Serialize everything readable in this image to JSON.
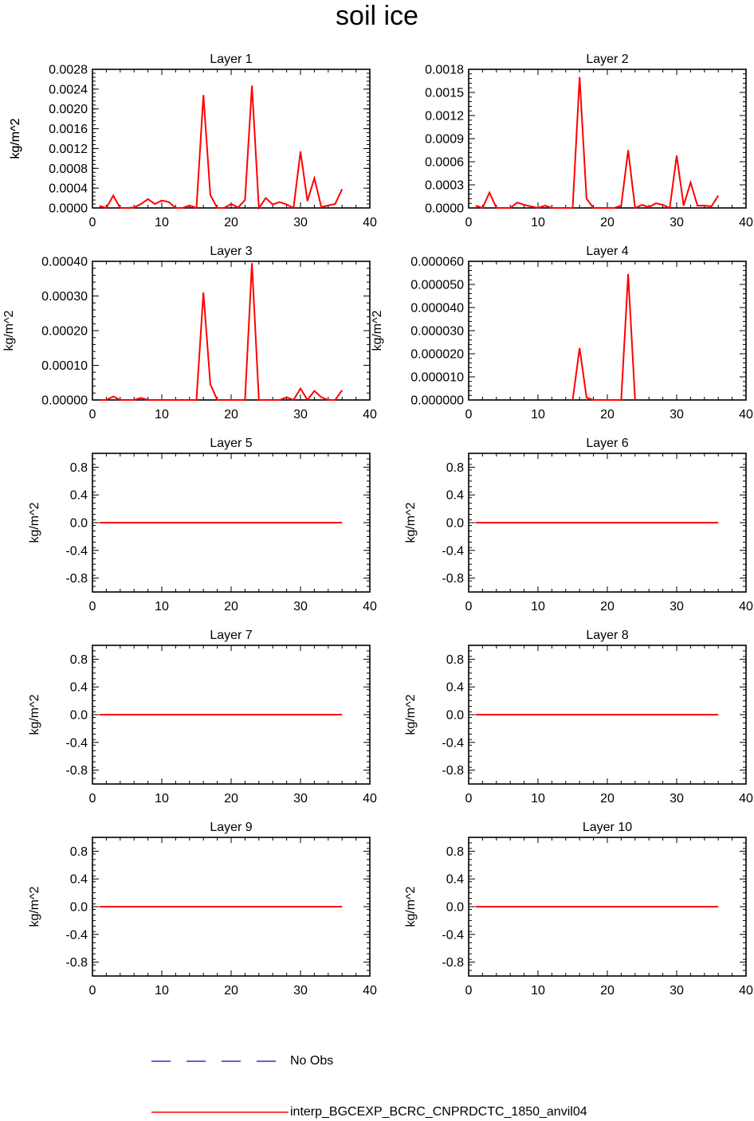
{
  "title": "soil ice",
  "colors": {
    "model_line": "#ff0000",
    "obs_line": "#0000cc",
    "axis": "#000000"
  },
  "legend": {
    "obs_label": "No Obs",
    "model_label": "interp_BGCEXP_BCRC_CNPRDCTC_1850_anvil04"
  },
  "chart_data": [
    {
      "type": "line",
      "title": "Layer 1",
      "ylabel": "kg/m^2",
      "xlim": [
        0,
        40
      ],
      "xticks": [
        "0",
        "10",
        "20",
        "30",
        "40"
      ],
      "ylim": [
        0,
        0.0028
      ],
      "yticks": [
        "0.0000",
        "0.0004",
        "0.0008",
        "0.0012",
        "0.0016",
        "0.0020",
        "0.0024",
        "0.0028"
      ],
      "series": [
        {
          "name": "interp_BGCEXP_BCRC_CNPRDCTC_1850_anvil04",
          "x": [
            1,
            2,
            3,
            4,
            5,
            6,
            7,
            8,
            9,
            10,
            11,
            12,
            13,
            14,
            15,
            16,
            17,
            18,
            19,
            20,
            21,
            22,
            23,
            24,
            25,
            26,
            27,
            28,
            29,
            30,
            31,
            32,
            33,
            34,
            35,
            36
          ],
          "values": [
            4e-05,
            0.0,
            0.00025,
            0.0,
            0.0,
            1e-05,
            8e-05,
            0.00018,
            8e-05,
            0.00015,
            0.00012,
            0.0,
            0.0,
            5e-05,
            0.0,
            0.00228,
            0.00026,
            0.0,
            0.0,
            8e-05,
            1e-05,
            0.00016,
            0.00247,
            0.0,
            0.0002,
            7e-05,
            0.00012,
            7e-05,
            0.0,
            0.00114,
            0.00014,
            0.0006,
            2e-05,
            5e-05,
            8e-05,
            0.00038
          ]
        }
      ]
    },
    {
      "type": "line",
      "title": "Layer 2",
      "ylabel": "kg/m^2",
      "xlim": [
        0,
        40
      ],
      "xticks": [
        "0",
        "10",
        "20",
        "30",
        "40"
      ],
      "ylim": [
        0,
        0.0018
      ],
      "yticks": [
        "0.0000",
        "0.0003",
        "0.0006",
        "0.0009",
        "0.0012",
        "0.0015",
        "0.0018"
      ],
      "series": [
        {
          "name": "interp_BGCEXP_BCRC_CNPRDCTC_1850_anvil04",
          "x": [
            1,
            2,
            3,
            4,
            5,
            6,
            7,
            8,
            9,
            10,
            11,
            12,
            13,
            14,
            15,
            16,
            17,
            18,
            19,
            20,
            21,
            22,
            23,
            24,
            25,
            26,
            27,
            28,
            29,
            30,
            31,
            32,
            33,
            34,
            35,
            36
          ],
          "values": [
            3e-05,
            0.0,
            0.0002,
            0.0,
            0.0,
            0.0,
            7e-05,
            4e-05,
            2e-05,
            0.0,
            3e-05,
            0.0,
            0.0,
            0.0,
            0.0,
            0.0017,
            0.00012,
            0.0,
            0.0,
            0.0,
            0.0,
            3e-05,
            0.00075,
            0.0,
            4e-05,
            1e-05,
            6e-05,
            4e-05,
            0.0,
            0.00068,
            3e-05,
            0.00033,
            3e-05,
            3e-05,
            2e-05,
            0.00016
          ]
        }
      ]
    },
    {
      "type": "line",
      "title": "Layer 3",
      "ylabel": "kg/m^2",
      "xlim": [
        0,
        40
      ],
      "xticks": [
        "0",
        "10",
        "20",
        "30",
        "40"
      ],
      "ylim": [
        0,
        0.0004
      ],
      "yticks": [
        "0.00000",
        "0.00010",
        "0.00020",
        "0.00030",
        "0.00040"
      ],
      "series": [
        {
          "name": "interp_BGCEXP_BCRC_CNPRDCTC_1850_anvil04",
          "x": [
            1,
            2,
            3,
            4,
            5,
            6,
            7,
            8,
            9,
            10,
            11,
            12,
            13,
            14,
            15,
            16,
            17,
            18,
            19,
            20,
            21,
            22,
            23,
            24,
            25,
            26,
            27,
            28,
            29,
            30,
            31,
            32,
            33,
            34,
            35,
            36
          ],
          "values": [
            0.0,
            0.0,
            1e-05,
            0.0,
            0.0,
            0.0,
            6e-06,
            0.0,
            0.0,
            0.0,
            0.0,
            0.0,
            0.0,
            0.0,
            0.0,
            0.00031,
            4.5e-05,
            0.0,
            0.0,
            0.0,
            0.0,
            0.0,
            0.000395,
            0.0,
            0.0,
            0.0,
            0.0,
            8e-06,
            0.0,
            3.3e-05,
            0.0,
            2.6e-05,
            8e-06,
            0.0,
            0.0,
            2.8e-05
          ]
        }
      ]
    },
    {
      "type": "line",
      "title": "Layer 4",
      "ylabel": "kg/m^2",
      "xlim": [
        0,
        40
      ],
      "xticks": [
        "0",
        "10",
        "20",
        "30",
        "40"
      ],
      "ylim": [
        0,
        6e-05
      ],
      "yticks": [
        "0.000000",
        "0.000010",
        "0.000020",
        "0.000030",
        "0.000040",
        "0.000050",
        "0.000060"
      ],
      "series": [
        {
          "name": "interp_BGCEXP_BCRC_CNPRDCTC_1850_anvil04",
          "x": [
            15,
            16,
            17,
            18,
            19,
            20,
            21,
            22,
            23,
            24
          ],
          "values": [
            0.0,
            2.25e-05,
            1e-06,
            0.0,
            0.0,
            0.0,
            0.0,
            0.0,
            5.45e-05,
            0.0
          ]
        }
      ]
    },
    {
      "type": "line",
      "title": "Layer 5",
      "ylabel": "kg/m^2",
      "xlim": [
        0,
        40
      ],
      "xticks": [
        "0",
        "10",
        "20",
        "30",
        "40"
      ],
      "ylim": [
        -1,
        1
      ],
      "yticks": [
        "-0.8",
        "-0.4",
        "0.0",
        "0.4",
        "0.8"
      ],
      "series": [
        {
          "name": "interp_BGCEXP_BCRC_CNPRDCTC_1850_anvil04",
          "x": [
            1,
            36
          ],
          "values": [
            0,
            0
          ]
        }
      ]
    },
    {
      "type": "line",
      "title": "Layer 6",
      "ylabel": "kg/m^2",
      "xlim": [
        0,
        40
      ],
      "xticks": [
        "0",
        "10",
        "20",
        "30",
        "40"
      ],
      "ylim": [
        -1,
        1
      ],
      "yticks": [
        "-0.8",
        "-0.4",
        "0.0",
        "0.4",
        "0.8"
      ],
      "series": [
        {
          "name": "interp_BGCEXP_BCRC_CNPRDCTC_1850_anvil04",
          "x": [
            1,
            36
          ],
          "values": [
            0,
            0
          ]
        }
      ]
    },
    {
      "type": "line",
      "title": "Layer 7",
      "ylabel": "kg/m^2",
      "xlim": [
        0,
        40
      ],
      "xticks": [
        "0",
        "10",
        "20",
        "30",
        "40"
      ],
      "ylim": [
        -1,
        1
      ],
      "yticks": [
        "-0.8",
        "-0.4",
        "0.0",
        "0.4",
        "0.8"
      ],
      "series": [
        {
          "name": "interp_BGCEXP_BCRC_CNPRDCTC_1850_anvil04",
          "x": [
            1,
            36
          ],
          "values": [
            0,
            0
          ]
        }
      ]
    },
    {
      "type": "line",
      "title": "Layer 8",
      "ylabel": "kg/m^2",
      "xlim": [
        0,
        40
      ],
      "xticks": [
        "0",
        "10",
        "20",
        "30",
        "40"
      ],
      "ylim": [
        -1,
        1
      ],
      "yticks": [
        "-0.8",
        "-0.4",
        "0.0",
        "0.4",
        "0.8"
      ],
      "series": [
        {
          "name": "interp_BGCEXP_BCRC_CNPRDCTC_1850_anvil04",
          "x": [
            1,
            36
          ],
          "values": [
            0,
            0
          ]
        }
      ]
    },
    {
      "type": "line",
      "title": "Layer 9",
      "ylabel": "kg/m^2",
      "xlim": [
        0,
        40
      ],
      "xticks": [
        "0",
        "10",
        "20",
        "30",
        "40"
      ],
      "ylim": [
        -1,
        1
      ],
      "yticks": [
        "-0.8",
        "-0.4",
        "0.0",
        "0.4",
        "0.8"
      ],
      "series": [
        {
          "name": "interp_BGCEXP_BCRC_CNPRDCTC_1850_anvil04",
          "x": [
            1,
            36
          ],
          "values": [
            0,
            0
          ]
        }
      ]
    },
    {
      "type": "line",
      "title": "Layer 10",
      "ylabel": "kg/m^2",
      "xlim": [
        0,
        40
      ],
      "xticks": [
        "0",
        "10",
        "20",
        "30",
        "40"
      ],
      "ylim": [
        -1,
        1
      ],
      "yticks": [
        "-0.8",
        "-0.4",
        "0.0",
        "0.4",
        "0.8"
      ],
      "series": [
        {
          "name": "interp_BGCEXP_BCRC_CNPRDCTC_1850_anvil04",
          "x": [
            1,
            36
          ],
          "values": [
            0,
            0
          ]
        }
      ]
    }
  ]
}
